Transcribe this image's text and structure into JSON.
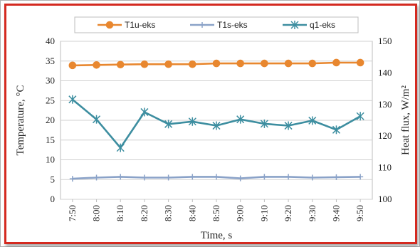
{
  "chart_data": {
    "type": "line",
    "categories": [
      "7:50",
      "8:00",
      "8:10",
      "8:20",
      "8:30",
      "8:40",
      "8:50",
      "9:00",
      "9:10",
      "9:20",
      "9:30",
      "9:40",
      "9:50"
    ],
    "xlabel": "Time, s",
    "ylabel": "Temperature, °C",
    "y2label": "Heat flux, W/m²",
    "ylim": [
      0,
      40
    ],
    "y2lim": [
      100,
      150
    ],
    "yticks": [
      "0",
      "5",
      "10",
      "15",
      "20",
      "25",
      "30",
      "35",
      "40"
    ],
    "y2ticks": [
      "100",
      "110",
      "120",
      "130",
      "140",
      "150"
    ],
    "grid": true,
    "legend_position": "top",
    "series": [
      {
        "name": "T1u-eks",
        "axis": "left",
        "color": "#e8872f",
        "marker": "circle",
        "values": [
          33.9,
          34.0,
          34.1,
          34.2,
          34.2,
          34.2,
          34.4,
          34.4,
          34.4,
          34.4,
          34.4,
          34.6,
          34.6
        ]
      },
      {
        "name": "T1s-eks",
        "axis": "left",
        "color": "#8aa2c8",
        "marker": "plus",
        "values": [
          5.2,
          5.5,
          5.7,
          5.5,
          5.5,
          5.7,
          5.7,
          5.3,
          5.7,
          5.7,
          5.5,
          5.6,
          5.7
        ]
      },
      {
        "name": "q1-eks",
        "axis": "right",
        "color": "#3d8ea0",
        "marker": "star",
        "values": [
          131.6,
          125.3,
          116.3,
          127.6,
          123.8,
          124.6,
          123.3,
          125.3,
          123.9,
          123.3,
          124.9,
          122.0,
          126.3
        ]
      }
    ]
  }
}
